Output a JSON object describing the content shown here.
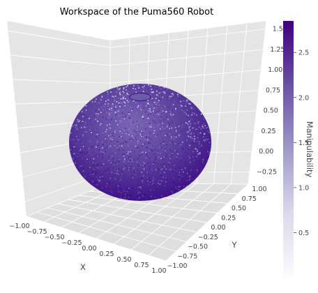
{
  "chart_data": {
    "type": "scatter",
    "title": "Workspace of the Puma560 Robot",
    "xlabel": "X",
    "ylabel": "Y",
    "zlabel": "",
    "xlim": [
      -1.0,
      1.0
    ],
    "ylim": [
      -1.0,
      1.0
    ],
    "zlim": [
      -0.4,
      1.6
    ],
    "x_ticks": [
      "−1.00",
      "−0.75",
      "−0.50",
      "−0.25",
      "0.00",
      "0.25",
      "0.50",
      "0.75",
      "1.00"
    ],
    "y_ticks": [
      "−1.00",
      "−0.75",
      "−0.50",
      "−0.25",
      "0.00",
      "0.25",
      "0.50",
      "0.75",
      "1.00"
    ],
    "z_ticks": [
      "−0.25",
      "0.00",
      "0.25",
      "0.50",
      "0.75",
      "1.00",
      "1.25",
      "1.50"
    ],
    "grid": true,
    "colorbar": {
      "label": "Manipulability",
      "ticks": [
        "0.5",
        "1.0",
        "1.5",
        "2.0",
        "2.5"
      ],
      "range": [
        0.0,
        2.85
      ],
      "colormap": "Purples",
      "color_low": "#fcfbfd",
      "color_high": "#3f007d"
    },
    "surface": {
      "shape": "sphere",
      "center": [
        0.0,
        0.0,
        0.6
      ],
      "radius": 0.95,
      "hole_at_top": true
    },
    "colors": {
      "pane": "#e5e5e5",
      "grid": "#ffffff",
      "point_dark": "#3f007d",
      "point_mid": "#54278f",
      "point_light": "#bcbddc"
    }
  }
}
